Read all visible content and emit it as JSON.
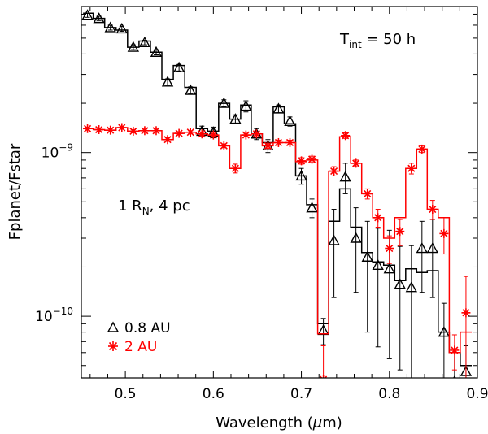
{
  "chart_data": {
    "type": "line",
    "xlabel": "Wavelength (μm)",
    "xlabel_parts": {
      "prefix": "Wavelength (",
      "mu": "μ",
      "suffix": "m)"
    },
    "ylabel": "Fplanet/Fstar",
    "xlim": [
      0.45,
      0.9
    ],
    "ylim": [
      4.2e-11,
      7.8e-09
    ],
    "yscale": "log",
    "x_ticks": [
      "0.5",
      "0.6",
      "0.7",
      "0.8",
      "0.9"
    ],
    "x_tick_values": [
      0.5,
      0.6,
      0.7,
      0.8,
      0.9
    ],
    "y_ticks": [
      {
        "value": 1e-09,
        "base": "10",
        "exp": "−9"
      },
      {
        "value": 1e-10,
        "base": "10",
        "exp": "−10"
      }
    ],
    "annotations": {
      "tint": {
        "T": "T",
        "sub": "int",
        "rest": " = 50 h"
      },
      "radius": {
        "pre": "1 R",
        "sub": "N",
        "rest": ", 4 pc"
      }
    },
    "legend": {
      "position": "bottom-left"
    },
    "series": [
      {
        "name": "0.8 AU",
        "color": "#000000",
        "marker": "triangle",
        "x": [
          0.457,
          0.47,
          0.483,
          0.496,
          0.509,
          0.522,
          0.535,
          0.548,
          0.561,
          0.574,
          0.587,
          0.6,
          0.612,
          0.625,
          0.637,
          0.649,
          0.662,
          0.674,
          0.687,
          0.7,
          0.712,
          0.725,
          0.737,
          0.75,
          0.762,
          0.775,
          0.787,
          0.8,
          0.812,
          0.825,
          0.837,
          0.849,
          0.862,
          0.874,
          0.887
        ],
        "y": [
          6.9e-09,
          6.6e-09,
          5.8e-09,
          5.7e-09,
          4.4e-09,
          4.7e-09,
          4.1e-09,
          2.7e-09,
          3.3e-09,
          2.4e-09,
          1.35e-09,
          1.33e-09,
          2e-09,
          1.6e-09,
          1.92e-09,
          1.3e-09,
          1.1e-09,
          1.85e-09,
          1.55e-09,
          7.2e-10,
          4.6e-10,
          8.2e-11,
          2.9e-10,
          7.1e-10,
          3e-10,
          2.3e-10,
          2.05e-10,
          1.95e-10,
          1.57e-10,
          1.5e-10,
          2.6e-10,
          2.6e-10,
          8e-11,
          4e-11,
          4.6e-11
        ],
        "err": [
          2e-10,
          2e-10,
          2e-10,
          2e-10,
          1.5e-10,
          1.5e-10,
          1.5e-10,
          1.2e-10,
          1.5e-10,
          1.2e-10,
          1e-10,
          1e-10,
          1e-10,
          1e-10,
          1.5e-10,
          1e-10,
          1e-10,
          1e-10,
          1e-10,
          8e-11,
          6e-11,
          1.5e-11,
          1.6e-10,
          1.5e-10,
          1.6e-10,
          1.5e-10,
          1.4e-10,
          1.4e-10,
          1.1e-10,
          1.2e-10,
          1.2e-10,
          1.3e-10,
          4e-11,
          2e-11,
          2e-11
        ],
        "model_edges": [
          0.452,
          0.4635,
          0.4765,
          0.4895,
          0.5025,
          0.5155,
          0.5285,
          0.5415,
          0.5545,
          0.5675,
          0.5805,
          0.5935,
          0.606,
          0.6185,
          0.631,
          0.643,
          0.6555,
          0.668,
          0.6805,
          0.6935,
          0.706,
          0.7185,
          0.731,
          0.7435,
          0.756,
          0.7685,
          0.781,
          0.7935,
          0.806,
          0.8185,
          0.831,
          0.843,
          0.8555,
          0.868,
          0.8805,
          0.8935
        ],
        "model_y": [
          7.1e-09,
          6.6e-09,
          5.8e-09,
          5.6e-09,
          4.4e-09,
          4.8e-09,
          4.1e-09,
          2.8e-09,
          3.4e-09,
          2.5e-09,
          1.4e-09,
          1.35e-09,
          2e-09,
          1.6e-09,
          1.95e-09,
          1.3e-09,
          1.15e-09,
          1.9e-09,
          1.5e-09,
          7.2e-10,
          4.8e-10,
          9e-11,
          3.8e-10,
          6e-10,
          3.5e-10,
          2.45e-10,
          2.15e-10,
          2.05e-10,
          1.65e-10,
          1.95e-10,
          1.85e-10,
          1.9e-10,
          8e-11,
          6e-11,
          5e-11
        ]
      },
      {
        "name": "2 AU",
        "color": "#ff0000",
        "marker": "asterisk",
        "x": [
          0.457,
          0.47,
          0.483,
          0.496,
          0.509,
          0.522,
          0.535,
          0.548,
          0.561,
          0.574,
          0.587,
          0.6,
          0.612,
          0.625,
          0.637,
          0.649,
          0.662,
          0.674,
          0.687,
          0.7,
          0.712,
          0.725,
          0.737,
          0.75,
          0.762,
          0.775,
          0.787,
          0.8,
          0.812,
          0.825,
          0.837,
          0.849,
          0.862,
          0.874,
          0.887
        ],
        "y": [
          1.4e-09,
          1.38e-09,
          1.37e-09,
          1.42e-09,
          1.35e-09,
          1.36e-09,
          1.36e-09,
          1.2e-09,
          1.31e-09,
          1.33e-09,
          1.3e-09,
          1.28e-09,
          1.1e-09,
          8e-10,
          1.28e-09,
          1.3e-09,
          1.1e-09,
          1.15e-09,
          1.15e-09,
          8.9e-10,
          9.1e-10,
          4.1e-11,
          7.7e-10,
          1.27e-09,
          8.6e-10,
          5.6e-10,
          4e-10,
          2.6e-10,
          3.3e-10,
          8e-10,
          1.05e-09,
          4.5e-10,
          3.2e-10,
          6.2e-11,
          1.05e-10
        ],
        "err": [
          3e-11,
          3e-11,
          3e-11,
          3e-11,
          3e-11,
          3e-11,
          3e-11,
          3e-11,
          3e-11,
          3e-11,
          3e-11,
          3e-11,
          3e-11,
          5e-11,
          3e-11,
          3e-11,
          4e-11,
          4e-11,
          4e-11,
          4e-11,
          4e-11,
          2.5e-11,
          5e-11,
          5e-11,
          4e-11,
          4e-11,
          5e-11,
          5e-11,
          6e-11,
          6e-11,
          5e-11,
          6e-11,
          8e-11,
          1.5e-11,
          7e-11
        ],
        "model_edges": [
          0.452,
          0.4635,
          0.4765,
          0.4895,
          0.5025,
          0.5155,
          0.5285,
          0.5415,
          0.5545,
          0.5675,
          0.5805,
          0.5935,
          0.606,
          0.6185,
          0.631,
          0.643,
          0.6555,
          0.668,
          0.6805,
          0.6935,
          0.706,
          0.7185,
          0.731,
          0.7435,
          0.756,
          0.7685,
          0.781,
          0.7935,
          0.806,
          0.8185,
          0.831,
          0.843,
          0.8555,
          0.868,
          0.8805,
          0.8935
        ],
        "model_y": [
          1.4e-09,
          1.38e-09,
          1.37e-09,
          1.42e-09,
          1.35e-09,
          1.36e-09,
          1.36e-09,
          1.2e-09,
          1.31e-09,
          1.33e-09,
          1.3e-09,
          1.28e-09,
          1.1e-09,
          8e-10,
          1.28e-09,
          1.3e-09,
          1.1e-09,
          1.15e-09,
          1.15e-09,
          8.8e-10,
          9e-10,
          7.8e-11,
          7.7e-10,
          1.25e-09,
          8.6e-10,
          5.6e-10,
          4e-10,
          3e-10,
          4e-10,
          8e-10,
          1.05e-09,
          4.5e-10,
          4e-10,
          6e-11,
          8e-11
        ]
      }
    ]
  }
}
